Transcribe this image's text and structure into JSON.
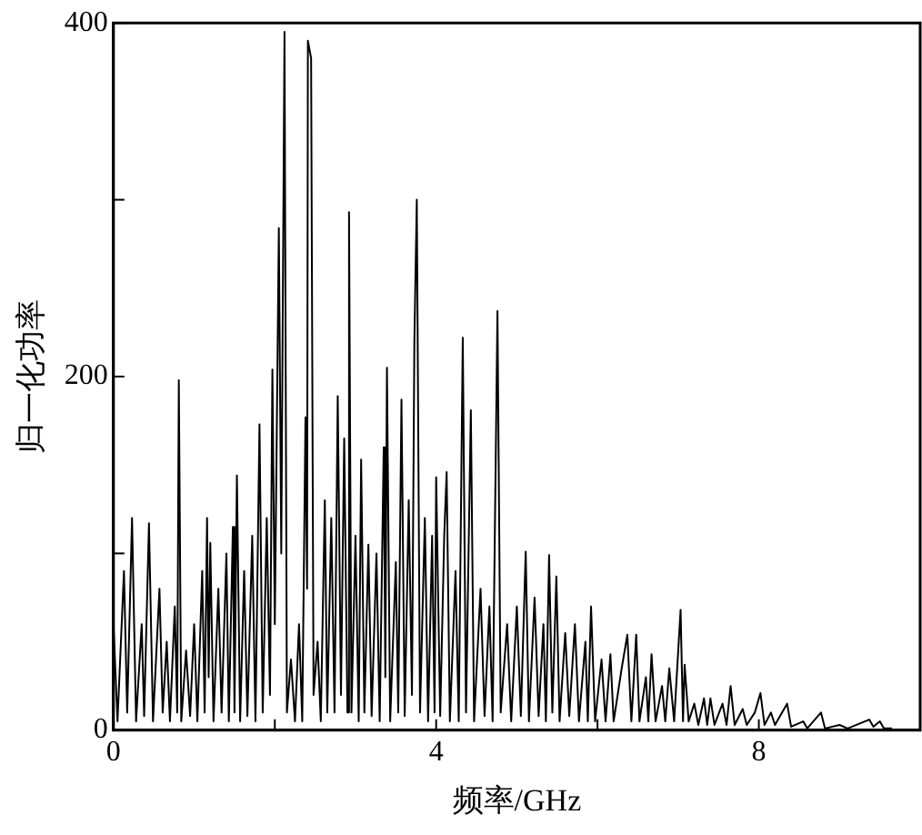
{
  "chart_data": {
    "type": "line",
    "xlabel": "频率/GHz",
    "ylabel": "归一化功率",
    "xlim": [
      0,
      10
    ],
    "ylim": [
      0,
      400
    ],
    "xticks": [
      0,
      {
        "value": 2,
        "label": null
      },
      4,
      {
        "value": 6,
        "label": null
      },
      8
    ],
    "yticks": [
      0,
      {
        "value": 100,
        "label": null
      },
      200,
      {
        "value": 300,
        "label": null
      },
      400
    ],
    "grid": false,
    "legend": false,
    "marker": "none",
    "line_style": "solid",
    "series": [
      {
        "color": "#000000",
        "x": [
          0,
          0.05,
          0.13,
          0.17,
          0.23,
          0.28,
          0.35,
          0.38,
          0.44,
          0.49,
          0.57,
          0.61,
          0.66,
          0.7,
          0.76,
          0.79,
          0.81,
          0.84,
          0.9,
          0.95,
          1.0,
          1.04,
          1.1,
          1.13,
          1.16,
          1.18,
          1.2,
          1.24,
          1.3,
          1.34,
          1.4,
          1.43,
          1.48,
          1.5,
          1.53,
          1.57,
          1.62,
          1.66,
          1.72,
          1.76,
          1.81,
          1.85,
          1.9,
          1.94,
          1.97,
          2.0,
          2.05,
          2.08,
          2.12,
          2.15,
          2.2,
          2.25,
          2.3,
          2.34,
          2.38,
          2.4,
          2.41,
          2.45,
          2.48,
          2.53,
          2.57,
          2.62,
          2.65,
          2.7,
          2.74,
          2.78,
          2.82,
          2.86,
          2.9,
          2.92,
          2.95,
          3.0,
          3.04,
          3.07,
          3.11,
          3.16,
          3.2,
          3.26,
          3.3,
          3.35,
          3.37,
          3.39,
          3.43,
          3.5,
          3.53,
          3.57,
          3.61,
          3.66,
          3.7,
          3.73,
          3.76,
          3.8,
          3.86,
          3.9,
          3.95,
          3.98,
          4.0,
          4.05,
          4.1,
          4.13,
          4.17,
          4.24,
          4.28,
          4.33,
          4.37,
          4.43,
          4.47,
          4.55,
          4.6,
          4.66,
          4.7,
          4.76,
          4.8,
          4.88,
          4.93,
          5.0,
          5.05,
          5.11,
          5.15,
          5.22,
          5.27,
          5.33,
          5.36,
          5.4,
          5.44,
          5.49,
          5.53,
          5.6,
          5.65,
          5.72,
          5.77,
          5.85,
          5.88,
          5.92,
          5.97,
          6.05,
          6.1,
          6.16,
          6.2,
          6.3,
          6.37,
          6.42,
          6.48,
          6.52,
          6.6,
          6.63,
          6.67,
          6.72,
          6.8,
          6.84,
          6.89,
          6.95,
          7.03,
          7.06,
          7.08,
          7.13,
          7.2,
          7.25,
          7.32,
          7.36,
          7.4,
          7.45,
          7.55,
          7.6,
          7.65,
          7.7,
          7.8,
          7.85,
          7.95,
          8.02,
          8.07,
          8.15,
          8.2,
          8.35,
          8.4,
          8.55,
          8.6,
          8.77,
          8.82,
          9.0,
          9.1,
          9.37,
          9.42,
          9.5,
          9.55,
          9.65
        ],
        "values": [
          60,
          5,
          90,
          10,
          120,
          5,
          60,
          8,
          117,
          5,
          80,
          10,
          50,
          5,
          70,
          10,
          198,
          5,
          45,
          8,
          60,
          5,
          90,
          10,
          120,
          30,
          106,
          5,
          80,
          10,
          100,
          5,
          115,
          10,
          144,
          5,
          90,
          8,
          110,
          5,
          173,
          10,
          120,
          20,
          204,
          60,
          284,
          100,
          395,
          10,
          40,
          5,
          60,
          5,
          177,
          80,
          390,
          380,
          20,
          50,
          5,
          130,
          10,
          120,
          10,
          189,
          20,
          165,
          10,
          293,
          10,
          110,
          5,
          153,
          10,
          105,
          8,
          100,
          5,
          160,
          30,
          205,
          5,
          95,
          10,
          187,
          8,
          130,
          20,
          220,
          300,
          10,
          120,
          5,
          110,
          10,
          143,
          8,
          110,
          146,
          5,
          90,
          5,
          222,
          10,
          181,
          5,
          80,
          8,
          70,
          5,
          237,
          10,
          60,
          5,
          70,
          8,
          101,
          5,
          75,
          8,
          60,
          5,
          99,
          10,
          87,
          5,
          55,
          8,
          60,
          5,
          50,
          5,
          70,
          5,
          40,
          5,
          43,
          5,
          35,
          54,
          5,
          54,
          5,
          30,
          5,
          43,
          5,
          25,
          5,
          35,
          5,
          68,
          5,
          37,
          5,
          15,
          3,
          18,
          3,
          18,
          3,
          15,
          3,
          25,
          3,
          12,
          3,
          10,
          21,
          3,
          10,
          3,
          15,
          2,
          5,
          1,
          10,
          1,
          3,
          1,
          6,
          2,
          5,
          1,
          1
        ]
      }
    ]
  }
}
